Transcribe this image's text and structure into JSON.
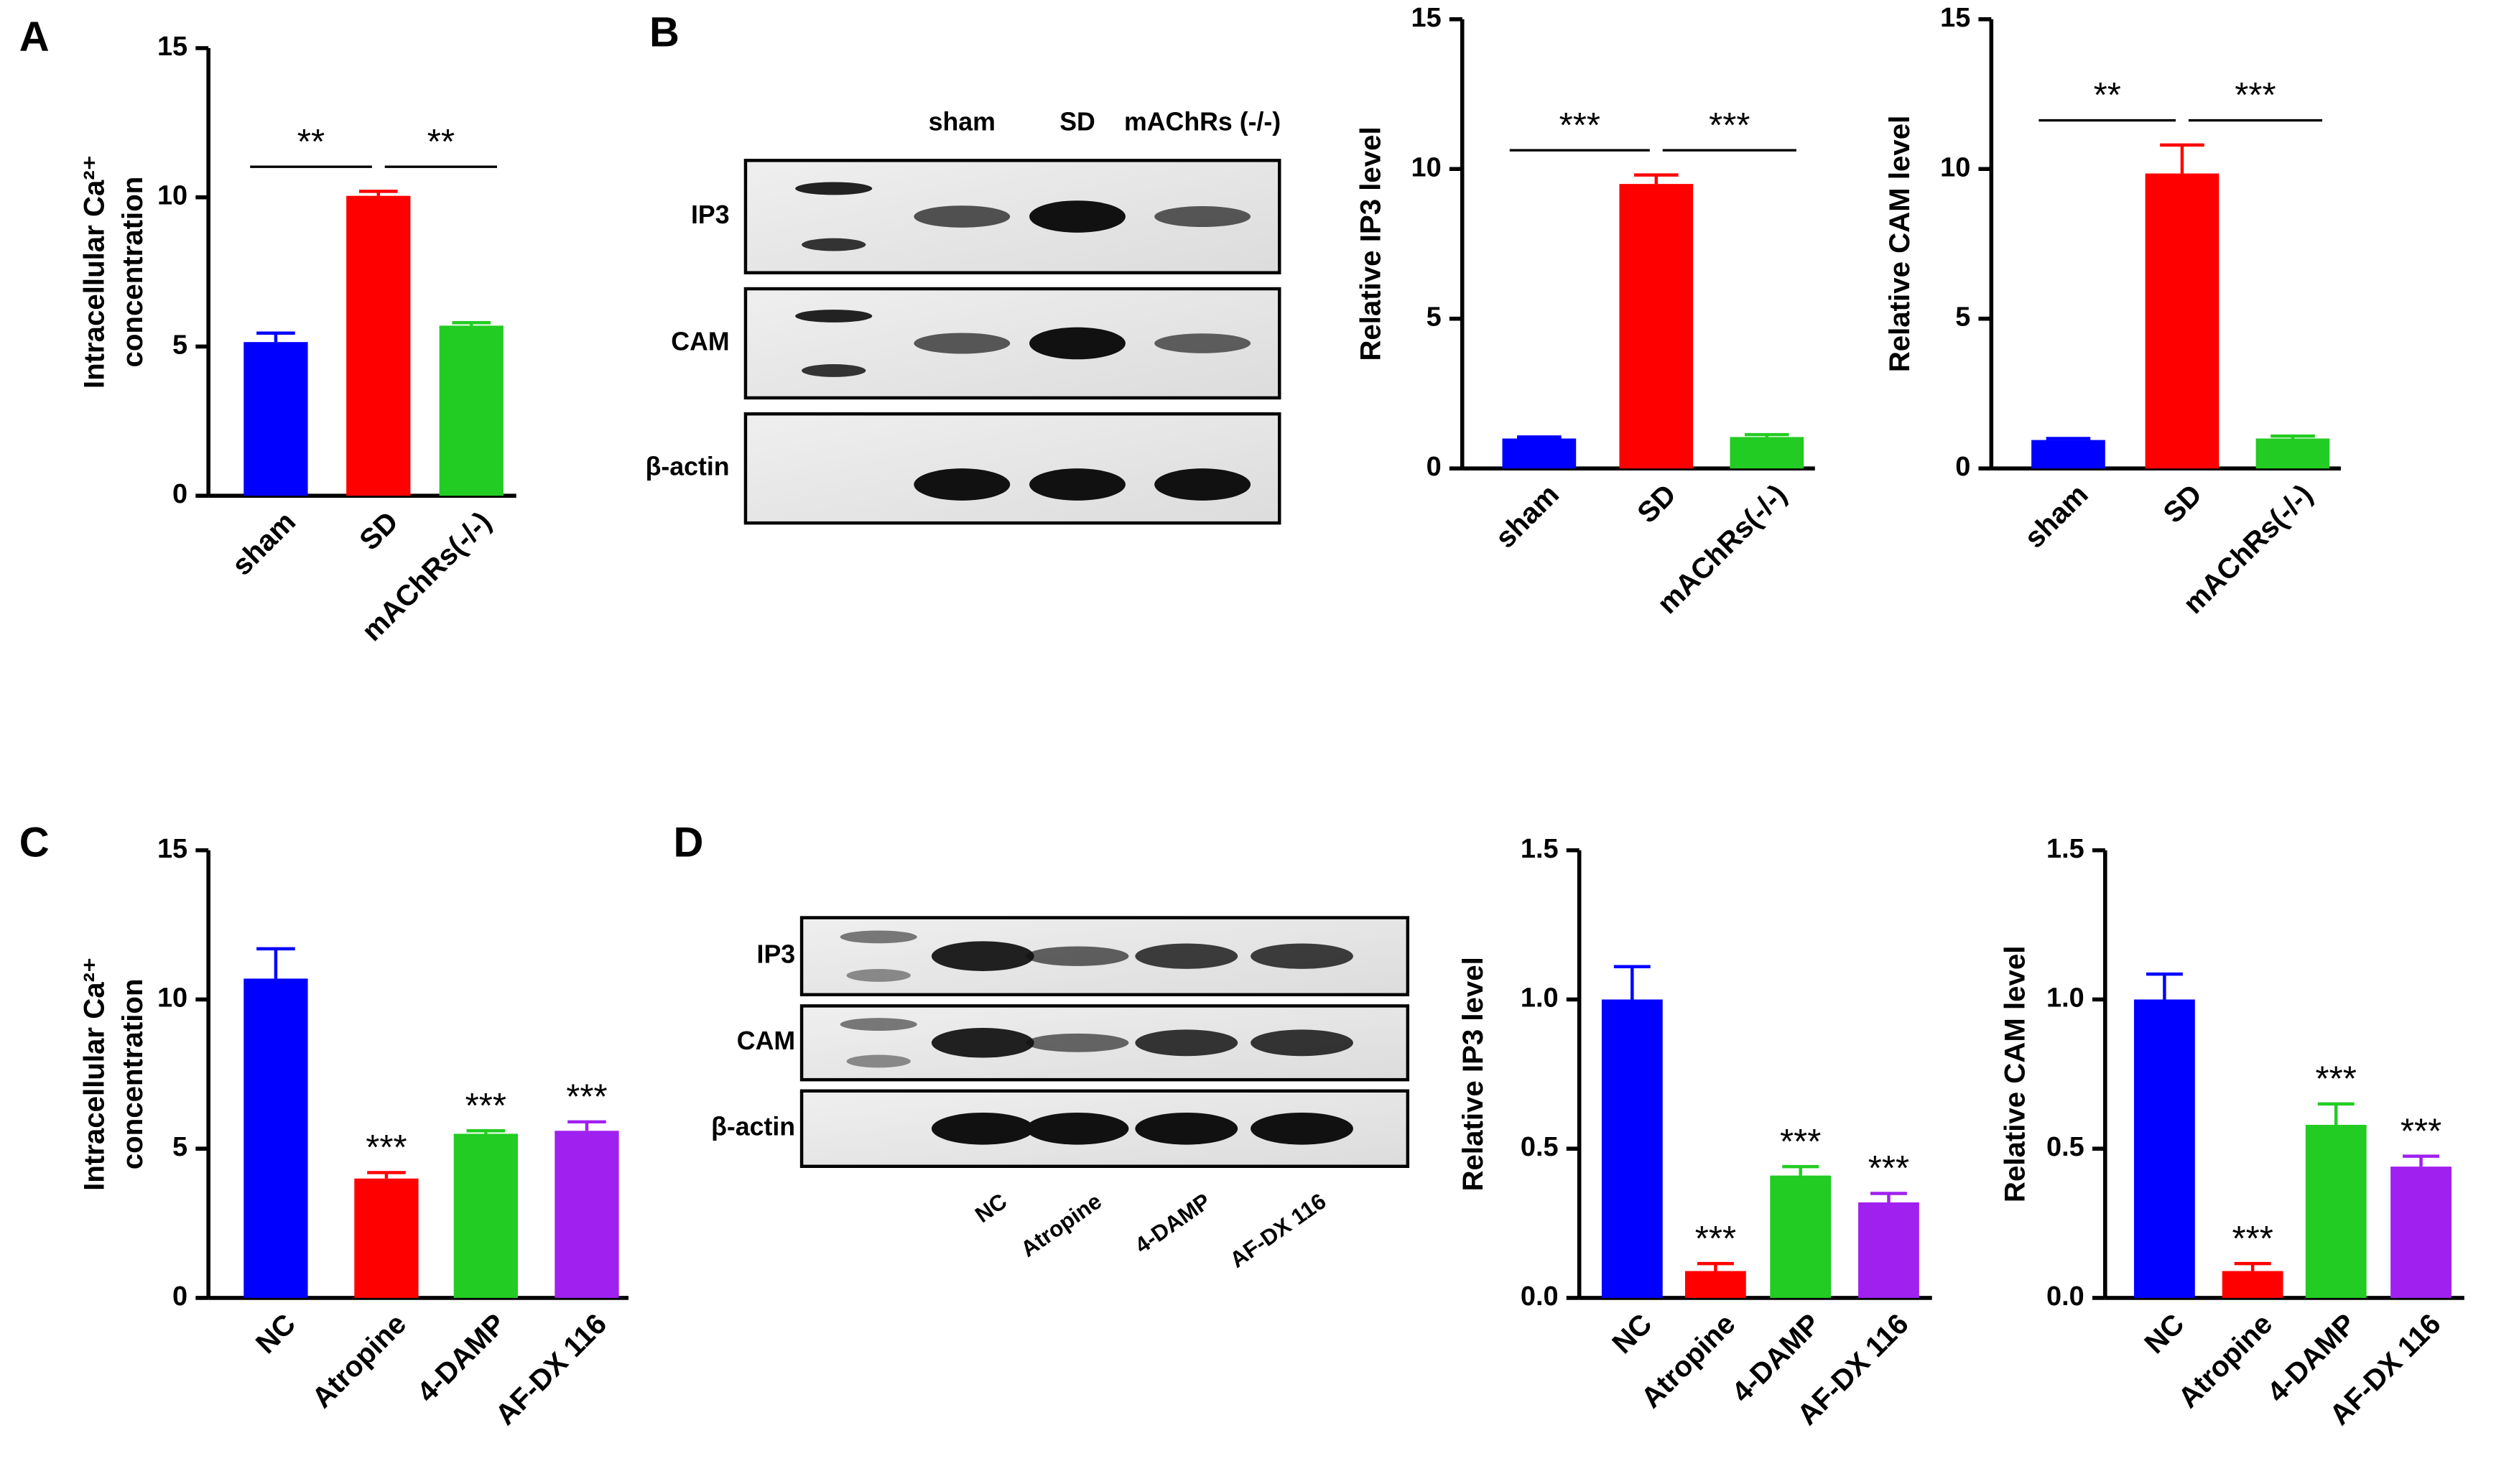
{
  "panels": [
    "A",
    "B",
    "C",
    "D"
  ],
  "blots": [
    {
      "lanes": [
        "sham",
        "SD",
        "mAChRs (-/-)"
      ],
      "rows": [
        "IP3",
        "CAM",
        "β-actin"
      ]
    },
    {
      "lanes": [
        "NC",
        "Atropine",
        "4-DAMP",
        "AF-DX 116"
      ],
      "rows": [
        "IP3",
        "CAM",
        "β-actin"
      ]
    }
  ],
  "chart_data": [
    {
      "type": "bar",
      "y_label": [
        "Intracellular Ca²⁺",
        "concentration"
      ],
      "categories": [
        "sham",
        "SD",
        "mAChRs(-/-)"
      ],
      "values": [
        5.15,
        10.05,
        5.7
      ],
      "errors": [
        0.3,
        0.15,
        0.1
      ],
      "colors": [
        "#0000ff",
        "#ff0000",
        "#22cc22"
      ],
      "ylim": [
        0,
        15
      ],
      "yticks": [
        0,
        5,
        10,
        15
      ],
      "brackets": [
        {
          "text": "**",
          "categories": [
            "sham",
            "SD"
          ]
        },
        {
          "text": "**",
          "categories": [
            "SD",
            "mAChRs(-/-)"
          ]
        }
      ]
    },
    {
      "type": "bar",
      "y_label": "Relative IP3 level",
      "categories": [
        "sham",
        "SD",
        "mAChRs(-/-)"
      ],
      "values": [
        1.0,
        9.5,
        1.05
      ],
      "errors": [
        0.05,
        0.3,
        0.08
      ],
      "colors": [
        "#0000ff",
        "#ff0000",
        "#22cc22"
      ],
      "ylim": [
        0,
        15
      ],
      "yticks": [
        0,
        5,
        10,
        15
      ],
      "brackets": [
        {
          "text": "***",
          "categories": [
            "sham",
            "SD"
          ]
        },
        {
          "text": "***",
          "categories": [
            "SD",
            "mAChRs(-/-)"
          ]
        }
      ]
    },
    {
      "type": "bar",
      "y_label": "Relative CAM level",
      "categories": [
        "sham",
        "SD",
        "mAChRs(-/-)"
      ],
      "values": [
        0.95,
        9.85,
        1.0
      ],
      "errors": [
        0.05,
        0.95,
        0.08
      ],
      "colors": [
        "#0000ff",
        "#ff0000",
        "#22cc22"
      ],
      "ylim": [
        0,
        15
      ],
      "yticks": [
        0,
        5,
        10,
        15
      ],
      "brackets": [
        {
          "text": "**",
          "categories": [
            "sham",
            "SD"
          ]
        },
        {
          "text": "***",
          "categories": [
            "SD",
            "mAChRs(-/-)"
          ]
        }
      ]
    },
    {
      "type": "bar",
      "y_label": [
        "Intracellular Ca²⁺",
        "concentration"
      ],
      "categories": [
        "NC",
        "Atropine",
        "4-DAMP",
        "AF-DX 116"
      ],
      "values": [
        10.7,
        4.0,
        5.5,
        5.6
      ],
      "errors": [
        1.0,
        0.2,
        0.1,
        0.3
      ],
      "colors": [
        "#0000ff",
        "#ff0000",
        "#22cc22",
        "#a020f0"
      ],
      "ylim": [
        0,
        15
      ],
      "yticks": [
        0,
        5,
        10,
        15
      ],
      "star_labels": [
        null,
        "***",
        "***",
        "***"
      ]
    },
    {
      "type": "bar",
      "y_label": "Relative IP3 level",
      "categories": [
        "NC",
        "Atropine",
        "4-DAMP",
        "AF-DX 116"
      ],
      "values": [
        1.0,
        0.09,
        0.41,
        0.32
      ],
      "errors": [
        0.11,
        0.025,
        0.03,
        0.03
      ],
      "colors": [
        "#0000ff",
        "#ff0000",
        "#22cc22",
        "#a020f0"
      ],
      "ylim": [
        0,
        1.5
      ],
      "yticks": [
        {
          "value": 0,
          "label": "0.0"
        },
        0.5,
        {
          "value": 1,
          "label": "1.0"
        },
        1.5
      ],
      "star_labels": [
        null,
        "***",
        "***",
        "***"
      ]
    },
    {
      "type": "bar",
      "y_label": "Relative CAM level",
      "categories": [
        "NC",
        "Atropine",
        "4-DAMP",
        "AF-DX 116"
      ],
      "values": [
        1.0,
        0.09,
        0.58,
        0.44
      ],
      "errors": [
        0.085,
        0.025,
        0.07,
        0.035
      ],
      "colors": [
        "#0000ff",
        "#ff0000",
        "#22cc22",
        "#a020f0"
      ],
      "ylim": [
        0,
        1.5
      ],
      "yticks": [
        {
          "value": 0,
          "label": "0.0"
        },
        0.5,
        {
          "value": 1,
          "label": "1.0"
        },
        1.5
      ],
      "star_labels": [
        null,
        "***",
        "***",
        "***"
      ]
    }
  ]
}
